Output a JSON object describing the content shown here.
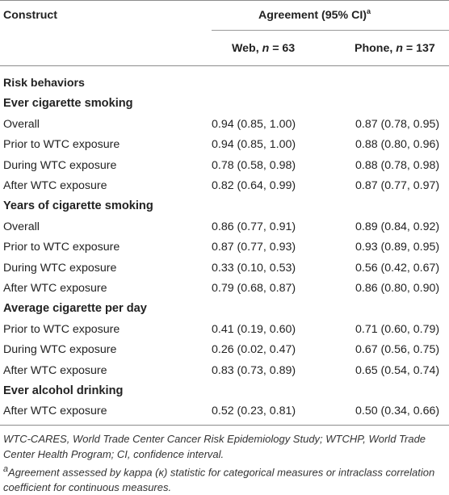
{
  "header": {
    "construct": "Construct",
    "agreement": "Agreement (95% CI)",
    "agreement_sup": "a",
    "web_prefix": "Web, ",
    "web_n": "n",
    "web_val": " = 63",
    "phone_prefix": "Phone, ",
    "phone_n": "n",
    "phone_val": " = 137"
  },
  "rows": [
    {
      "kind": "section",
      "label": "Risk behaviors",
      "web": "",
      "phone": ""
    },
    {
      "kind": "group",
      "label": "Ever cigarette smoking",
      "web": "",
      "phone": ""
    },
    {
      "kind": "data",
      "label": "Overall",
      "web": "0.94 (0.85, 1.00)",
      "phone": "0.87 (0.78, 0.95)"
    },
    {
      "kind": "data",
      "label": "Prior to WTC exposure",
      "web": "0.94 (0.85, 1.00)",
      "phone": "0.88 (0.80, 0.96)"
    },
    {
      "kind": "data",
      "label": "During WTC exposure",
      "web": "0.78 (0.58, 0.98)",
      "phone": "0.88 (0.78, 0.98)"
    },
    {
      "kind": "data",
      "label": "After WTC exposure",
      "web": "0.82 (0.64, 0.99)",
      "phone": "0.87 (0.77, 0.97)"
    },
    {
      "kind": "group",
      "label": "Years of cigarette smoking",
      "web": "",
      "phone": ""
    },
    {
      "kind": "data",
      "label": "Overall",
      "web": "0.86 (0.77, 0.91)",
      "phone": "0.89 (0.84, 0.92)"
    },
    {
      "kind": "data",
      "label": "Prior to WTC exposure",
      "web": "0.87 (0.77, 0.93)",
      "phone": "0.93 (0.89, 0.95)"
    },
    {
      "kind": "data",
      "label": "During WTC exposure",
      "web": "0.33 (0.10, 0.53)",
      "phone": "0.56 (0.42, 0.67)"
    },
    {
      "kind": "data",
      "label": "After WTC exposure",
      "web": "0.79 (0.68, 0.87)",
      "phone": "0.86 (0.80, 0.90)"
    },
    {
      "kind": "group",
      "label": "Average cigarette per day",
      "web": "",
      "phone": ""
    },
    {
      "kind": "data",
      "label": "Prior to WTC exposure",
      "web": "0.41 (0.19, 0.60)",
      "phone": "0.71 (0.60, 0.79)"
    },
    {
      "kind": "data",
      "label": "During WTC exposure",
      "web": "0.26 (0.02, 0.47)",
      "phone": "0.67 (0.56, 0.75)"
    },
    {
      "kind": "data",
      "label": "After WTC exposure",
      "web": "0.83 (0.73, 0.89)",
      "phone": "0.65 (0.54, 0.74)"
    },
    {
      "kind": "group",
      "label": "Ever alcohol drinking",
      "web": "",
      "phone": ""
    },
    {
      "kind": "data",
      "label": "After WTC exposure",
      "web": "0.52 (0.23, 0.81)",
      "phone": "0.50 (0.34, 0.66)"
    }
  ],
  "footnotes": {
    "abbrev": "WTC-CARES, World Trade Center Cancer Risk Epidemiology Study; WTCHP, World Trade Center Health Program; CI, confidence interval.",
    "note_sup": "a",
    "note": "Agreement assessed by kappa (κ) statistic for categorical measures or intraclass correlation coefficient for continuous measures."
  },
  "colors": {
    "text": "#222222",
    "rule": "#8c8c8c"
  }
}
